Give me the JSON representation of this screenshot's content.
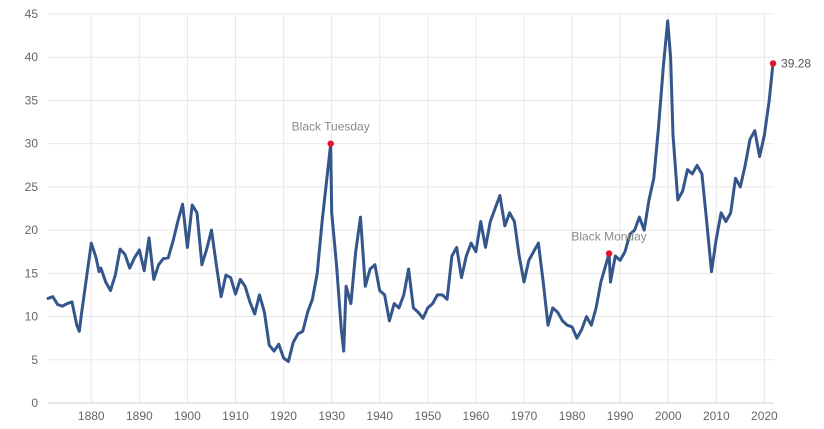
{
  "chart_data": {
    "type": "line",
    "title": "",
    "xlabel": "",
    "ylabel": "",
    "xlim": [
      1871,
      2022
    ],
    "ylim": [
      0,
      45
    ],
    "grid": true,
    "x_ticks": [
      "1880",
      "1890",
      "1900",
      "1910",
      "1920",
      "1930",
      "1940",
      "1950",
      "1960",
      "1970",
      "1980",
      "1990",
      "2000",
      "2010",
      "2020"
    ],
    "y_ticks": [
      "0",
      "5",
      "10",
      "15",
      "20",
      "25",
      "30",
      "35",
      "40",
      "45"
    ],
    "line_color": "#34568b",
    "marker_color": "#e8112d",
    "series": [
      {
        "x": [
          1871,
          1872,
          1873,
          1874,
          1875,
          1876,
          1877,
          1877.5,
          1878,
          1879,
          1880,
          1881,
          1881.6,
          1882,
          1883,
          1884,
          1885,
          1886,
          1887,
          1888,
          1889,
          1890,
          1891,
          1892,
          1893,
          1894,
          1895,
          1896,
          1897,
          1898,
          1899,
          1900,
          1901,
          1902,
          1903,
          1904,
          1905,
          1906,
          1907,
          1908,
          1909,
          1910,
          1911,
          1912,
          1913,
          1914,
          1915,
          1916,
          1917,
          1918,
          1919,
          1920,
          1921,
          1922,
          1923,
          1924,
          1925,
          1926,
          1927,
          1928,
          1929.8,
          1930,
          1931,
          1932,
          1932.5,
          1933,
          1934,
          1935,
          1936,
          1937,
          1938,
          1939,
          1940,
          1941,
          1942,
          1943,
          1944,
          1945,
          1946,
          1947,
          1948,
          1949,
          1950,
          1951,
          1952,
          1953,
          1954,
          1955,
          1956,
          1957,
          1958,
          1959,
          1960,
          1961,
          1962,
          1963,
          1964,
          1965,
          1966,
          1967,
          1968,
          1969,
          1970,
          1971,
          1972,
          1973,
          1974,
          1975,
          1976,
          1977,
          1978,
          1979,
          1980,
          1981,
          1982,
          1983,
          1984,
          1985,
          1986,
          1987.7,
          1988,
          1989,
          1990,
          1991,
          1992,
          1993,
          1994,
          1995,
          1996,
          1997,
          1998,
          1999,
          1999.9,
          2000.5,
          2001,
          2002,
          2003,
          2004,
          2005,
          2006,
          2007,
          2008,
          2009,
          2010,
          2011,
          2012,
          2013,
          2014,
          2015,
          2016,
          2017,
          2018,
          2019,
          2020,
          2021,
          2021.8
        ],
        "y": [
          12.1,
          12.3,
          11.4,
          11.2,
          11.5,
          11.7,
          9.0,
          8.3,
          10.5,
          14.5,
          18.5,
          16.8,
          15.2,
          15.6,
          14.0,
          13.0,
          14.8,
          17.8,
          17.2,
          15.6,
          16.8,
          17.7,
          15.3,
          19.1,
          14.3,
          16.0,
          16.7,
          16.8,
          18.7,
          21.0,
          23.0,
          18.0,
          22.9,
          22.0,
          16.0,
          17.8,
          20.0,
          16.0,
          12.3,
          14.8,
          14.5,
          12.6,
          14.3,
          13.5,
          11.7,
          10.3,
          12.5,
          10.5,
          6.7,
          6.0,
          6.8,
          5.2,
          4.8,
          7.0,
          8.0,
          8.3,
          10.5,
          12.0,
          15.0,
          21.0,
          30.0,
          22.0,
          16.0,
          8.5,
          6.0,
          13.5,
          11.5,
          17.5,
          21.5,
          13.5,
          15.5,
          16.0,
          13.0,
          12.5,
          9.5,
          11.5,
          11.0,
          12.5,
          15.5,
          11.0,
          10.5,
          9.8,
          11.0,
          11.5,
          12.5,
          12.5,
          12.0,
          17.0,
          18.0,
          14.5,
          17.0,
          18.5,
          17.5,
          21.0,
          18.0,
          21.0,
          22.5,
          24.0,
          20.5,
          22.0,
          21.0,
          17.0,
          14.0,
          16.5,
          17.5,
          18.5,
          14.0,
          9.0,
          11.0,
          10.5,
          9.5,
          9.0,
          8.8,
          7.5,
          8.5,
          10.0,
          9.0,
          11.0,
          14.0,
          17.3,
          14.0,
          17.0,
          16.5,
          17.5,
          19.5,
          20.0,
          21.5,
          20.0,
          23.5,
          26.0,
          32.0,
          39.0,
          44.2,
          40.0,
          31.0,
          23.5,
          24.5,
          27.0,
          26.5,
          27.5,
          26.5,
          21.0,
          15.2,
          19.0,
          22.0,
          21.0,
          22.0,
          26.0,
          25.0,
          27.5,
          30.5,
          31.5,
          28.5,
          31.0,
          35.0,
          39.28
        ]
      }
    ],
    "annotations": [
      {
        "text": "Black Tuesday",
        "x": 1929.8,
        "y": 30.0
      },
      {
        "text": "Black Monday",
        "x": 1987.7,
        "y": 17.3
      }
    ],
    "end_label": {
      "text": "39.28",
      "x": 2021.8,
      "y": 39.28
    }
  }
}
